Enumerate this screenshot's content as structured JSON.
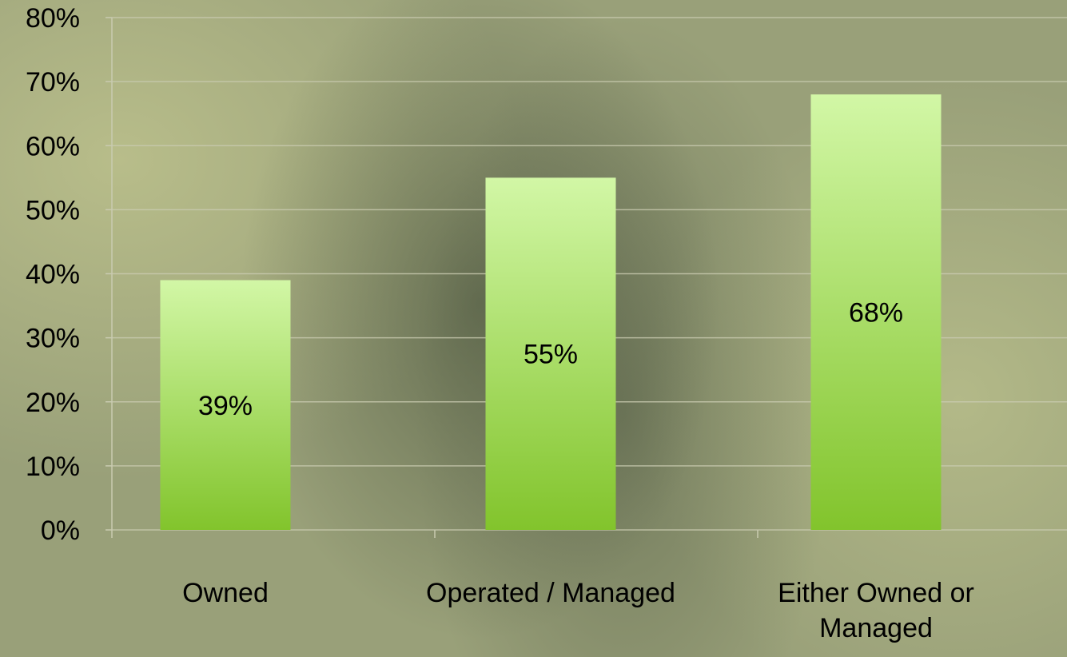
{
  "chart_data": {
    "type": "bar",
    "categories": [
      "Owned",
      "Operated / Managed",
      "Either Owned or Managed"
    ],
    "values": [
      39,
      55,
      68
    ],
    "value_labels": [
      "39%",
      "55%",
      "68%"
    ],
    "color": "#8fcc3a",
    "ylim": [
      0,
      80
    ],
    "yticks": [
      {
        "value": 0,
        "label": "0%"
      },
      {
        "value": 10,
        "label": "10%"
      },
      {
        "value": 20,
        "label": "20%"
      },
      {
        "value": 30,
        "label": "30%"
      },
      {
        "value": 40,
        "label": "40%"
      },
      {
        "value": 50,
        "label": "50%"
      },
      {
        "value": 60,
        "label": "60%"
      },
      {
        "value": 70,
        "label": "70%"
      },
      {
        "value": 80,
        "label": "80%"
      }
    ],
    "grid": true
  }
}
